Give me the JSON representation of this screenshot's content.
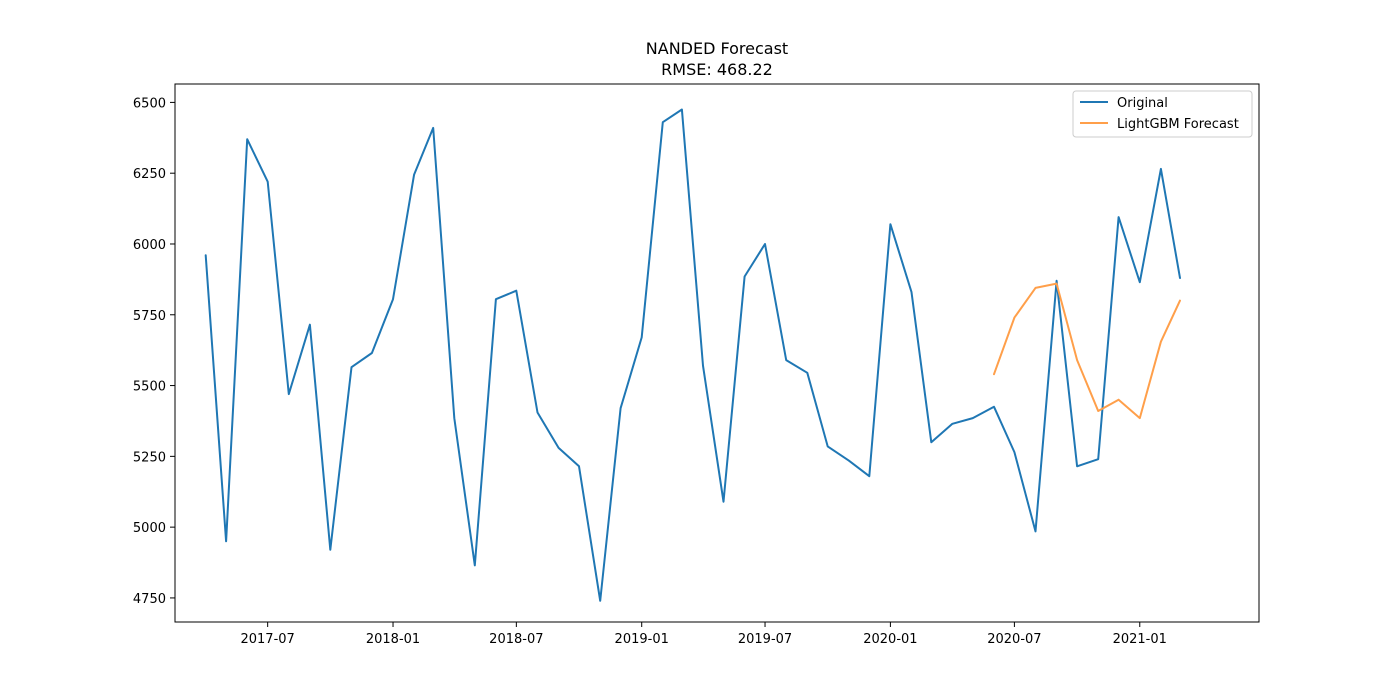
{
  "chart_data": {
    "type": "line",
    "title": "NANDED Forecast",
    "subtitle": "RMSE: 468.22",
    "xlabel": "",
    "ylabel": "",
    "x_ticks": [
      "2017-07",
      "2018-01",
      "2018-07",
      "2019-01",
      "2019-07",
      "2020-01",
      "2020-07",
      "2021-01"
    ],
    "y_ticks": [
      4750,
      5000,
      5250,
      5500,
      5750,
      6000,
      6250,
      6500
    ],
    "xlim": [
      "2017-02-15",
      "2021-06-25"
    ],
    "ylim": [
      4665,
      6565
    ],
    "legend_position": "top-right",
    "grid": false,
    "series": [
      {
        "name": "Original",
        "color": "#1f77b4",
        "x": [
          "2017-04",
          "2017-05",
          "2017-06",
          "2017-07",
          "2017-08",
          "2017-09",
          "2017-10",
          "2017-11",
          "2017-12",
          "2018-01",
          "2018-02",
          "2018-03",
          "2018-04",
          "2018-05",
          "2018-06",
          "2018-07",
          "2018-08",
          "2018-09",
          "2018-10",
          "2018-11",
          "2018-12",
          "2019-01",
          "2019-02",
          "2019-03",
          "2019-04",
          "2019-05",
          "2019-06",
          "2019-07",
          "2019-08",
          "2019-09",
          "2019-10",
          "2019-11",
          "2019-12",
          "2020-01",
          "2020-02",
          "2020-03",
          "2020-04",
          "2020-05",
          "2020-06",
          "2020-07",
          "2020-08",
          "2020-09",
          "2020-10",
          "2020-11",
          "2020-12",
          "2021-01",
          "2021-02",
          "2021-03"
        ],
        "values": [
          5960,
          4950,
          6370,
          6220,
          5470,
          5715,
          4920,
          5565,
          5615,
          5805,
          6245,
          6410,
          5385,
          4865,
          5805,
          5835,
          5405,
          5280,
          5215,
          4740,
          5420,
          5670,
          6430,
          6475,
          5570,
          5090,
          5885,
          6000,
          5590,
          5545,
          5285,
          5235,
          5180,
          6070,
          5830,
          5300,
          5365,
          5385,
          5425,
          5265,
          4985,
          5870,
          5215,
          5240,
          6095,
          5865,
          6265,
          5880
        ]
      },
      {
        "name": "LightGBM Forecast",
        "color": "#ff9f4a",
        "x": [
          "2020-06",
          "2020-07",
          "2020-08",
          "2020-09",
          "2020-10",
          "2020-11",
          "2020-12",
          "2021-01",
          "2021-02",
          "2021-03"
        ],
        "values": [
          5540,
          5740,
          5845,
          5860,
          5590,
          5410,
          5450,
          5385,
          5655,
          5800
        ]
      }
    ]
  }
}
